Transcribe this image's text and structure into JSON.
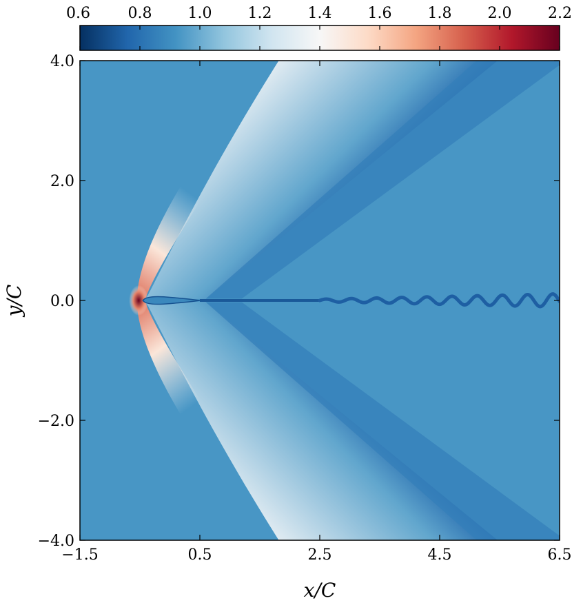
{
  "chart_data": {
    "type": "heatmap",
    "title": "",
    "xlabel": "x/C",
    "ylabel": "y/C",
    "xlim": [
      -1.5,
      6.5
    ],
    "ylim": [
      -4.0,
      4.0
    ],
    "xticks": [
      -1.5,
      0.5,
      2.5,
      4.5,
      6.5
    ],
    "xtick_labels": [
      "−1.5",
      "0.5",
      "2.5",
      "4.5",
      "6.5"
    ],
    "yticks": [
      -4.0,
      -2.0,
      0.0,
      2.0,
      4.0
    ],
    "ytick_labels": [
      "−4.0",
      "−2.0",
      "0.0",
      "2.0",
      "4.0"
    ],
    "colorbar": {
      "orientation": "horizontal",
      "placement": "top",
      "range": [
        0.6,
        2.2
      ],
      "ticks": [
        0.6,
        0.8,
        1.0,
        1.2,
        1.4,
        1.6,
        1.8,
        2.0,
        2.2
      ],
      "tick_labels": [
        "0.6",
        "0.8",
        "1.0",
        "1.2",
        "1.4",
        "1.6",
        "1.8",
        "2.0",
        "2.2"
      ],
      "colormap": "RdBu_r",
      "stops": [
        "#053061",
        "#2166ac",
        "#4393c3",
        "#92c5de",
        "#d1e5f0",
        "#f7f7f7",
        "#fddbc7",
        "#f4a582",
        "#d6604d",
        "#b2182b",
        "#67001f"
      ]
    },
    "freestream_value": 0.93,
    "airfoil": {
      "leading_edge_x": -0.5,
      "trailing_edge_x": 0.5,
      "max_half_thickness": 0.06
    },
    "features": {
      "bow_shock_peak_value": 2.2,
      "bow_shock_peak_location": [
        -0.55,
        0.0
      ],
      "expansion_fan_min_value": 0.76,
      "wake_vortex_street_start_x": 2.5,
      "wake_vortex_street_end_x": 6.5
    },
    "grid": false
  }
}
